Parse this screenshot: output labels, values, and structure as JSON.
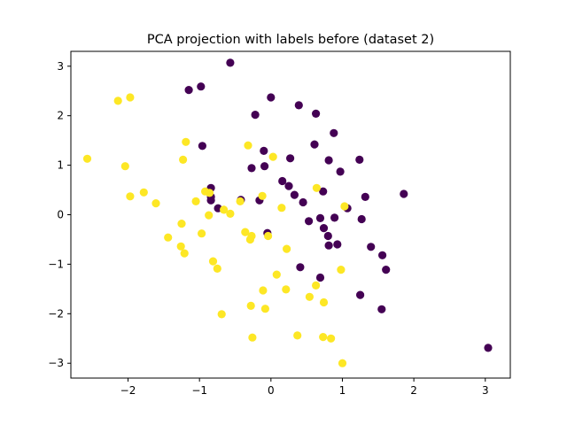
{
  "chart_data": {
    "type": "scatter",
    "title": "PCA projection with labels before (dataset 2)",
    "xlabel": "",
    "ylabel": "",
    "xlim": [
      -2.8,
      3.35
    ],
    "ylim": [
      -3.3,
      3.3
    ],
    "xticks": [
      -2,
      -1,
      0,
      1,
      2,
      3
    ],
    "yticks": [
      -3,
      -2,
      -1,
      0,
      1,
      2,
      3
    ],
    "grid": false,
    "colors": {
      "class_0": "#440154",
      "class_1": "#fde725"
    },
    "series": [
      {
        "color": "#440154",
        "points": [
          [
            -0.57,
            3.07
          ],
          [
            -1.15,
            2.52
          ],
          [
            -0.98,
            2.59
          ],
          [
            0.0,
            2.37
          ],
          [
            0.39,
            2.21
          ],
          [
            -0.22,
            2.02
          ],
          [
            0.63,
            2.04
          ],
          [
            0.88,
            1.65
          ],
          [
            -0.96,
            1.39
          ],
          [
            0.61,
            1.42
          ],
          [
            -0.1,
            1.29
          ],
          [
            0.27,
            1.14
          ],
          [
            0.81,
            1.1
          ],
          [
            1.24,
            1.11
          ],
          [
            -0.27,
            0.94
          ],
          [
            -0.09,
            0.98
          ],
          [
            0.97,
            0.87
          ],
          [
            0.16,
            0.68
          ],
          [
            0.25,
            0.58
          ],
          [
            0.73,
            0.47
          ],
          [
            1.32,
            0.36
          ],
          [
            0.33,
            0.4
          ],
          [
            1.86,
            0.42
          ],
          [
            -0.84,
            0.54
          ],
          [
            -0.84,
            0.36
          ],
          [
            -0.84,
            0.29
          ],
          [
            -0.42,
            0.3
          ],
          [
            -0.16,
            0.29
          ],
          [
            0.45,
            0.25
          ],
          [
            1.07,
            0.13
          ],
          [
            -0.74,
            0.13
          ],
          [
            0.69,
            -0.07
          ],
          [
            0.89,
            -0.06
          ],
          [
            1.27,
            -0.09
          ],
          [
            0.53,
            -0.13
          ],
          [
            0.74,
            -0.27
          ],
          [
            0.8,
            -0.43
          ],
          [
            -0.05,
            -0.37
          ],
          [
            0.81,
            -0.62
          ],
          [
            0.93,
            -0.6
          ],
          [
            1.4,
            -0.65
          ],
          [
            1.56,
            -0.82
          ],
          [
            1.61,
            -1.11
          ],
          [
            0.41,
            -1.06
          ],
          [
            0.69,
            -1.27
          ],
          [
            1.25,
            -1.62
          ],
          [
            1.55,
            -1.91
          ],
          [
            3.04,
            -2.69
          ]
        ]
      },
      {
        "color": "#fde725",
        "points": [
          [
            -2.14,
            2.3
          ],
          [
            -1.97,
            2.37
          ],
          [
            -2.57,
            1.13
          ],
          [
            -1.19,
            1.47
          ],
          [
            -1.23,
            1.11
          ],
          [
            -2.04,
            0.98
          ],
          [
            -0.32,
            1.4
          ],
          [
            0.03,
            1.17
          ],
          [
            -1.78,
            0.45
          ],
          [
            -1.97,
            0.37
          ],
          [
            -0.92,
            0.47
          ],
          [
            -1.61,
            0.23
          ],
          [
            -1.05,
            0.27
          ],
          [
            -0.86,
            0.44
          ],
          [
            -0.43,
            0.27
          ],
          [
            -0.12,
            0.38
          ],
          [
            0.64,
            0.54
          ],
          [
            1.03,
            0.17
          ],
          [
            0.15,
            0.14
          ],
          [
            -0.66,
            0.1
          ],
          [
            -0.57,
            0.02
          ],
          [
            -0.87,
            -0.01
          ],
          [
            -1.25,
            -0.18
          ],
          [
            -0.97,
            -0.38
          ],
          [
            -0.36,
            -0.35
          ],
          [
            -0.27,
            -0.43
          ],
          [
            -0.29,
            -0.5
          ],
          [
            -0.04,
            -0.43
          ],
          [
            -1.44,
            -0.46
          ],
          [
            -1.26,
            -0.64
          ],
          [
            -1.21,
            -0.78
          ],
          [
            0.22,
            -0.69
          ],
          [
            -0.81,
            -0.94
          ],
          [
            -0.75,
            -1.09
          ],
          [
            0.08,
            -1.21
          ],
          [
            0.98,
            -1.11
          ],
          [
            -0.11,
            -1.53
          ],
          [
            0.21,
            -1.51
          ],
          [
            0.63,
            -1.43
          ],
          [
            0.54,
            -1.66
          ],
          [
            0.74,
            -1.77
          ],
          [
            -0.28,
            -1.84
          ],
          [
            -0.08,
            -1.9
          ],
          [
            -0.69,
            -2.01
          ],
          [
            0.37,
            -2.44
          ],
          [
            -0.26,
            -2.48
          ],
          [
            0.73,
            -2.47
          ],
          [
            0.84,
            -2.5
          ],
          [
            1.0,
            -3.0
          ]
        ]
      }
    ]
  }
}
